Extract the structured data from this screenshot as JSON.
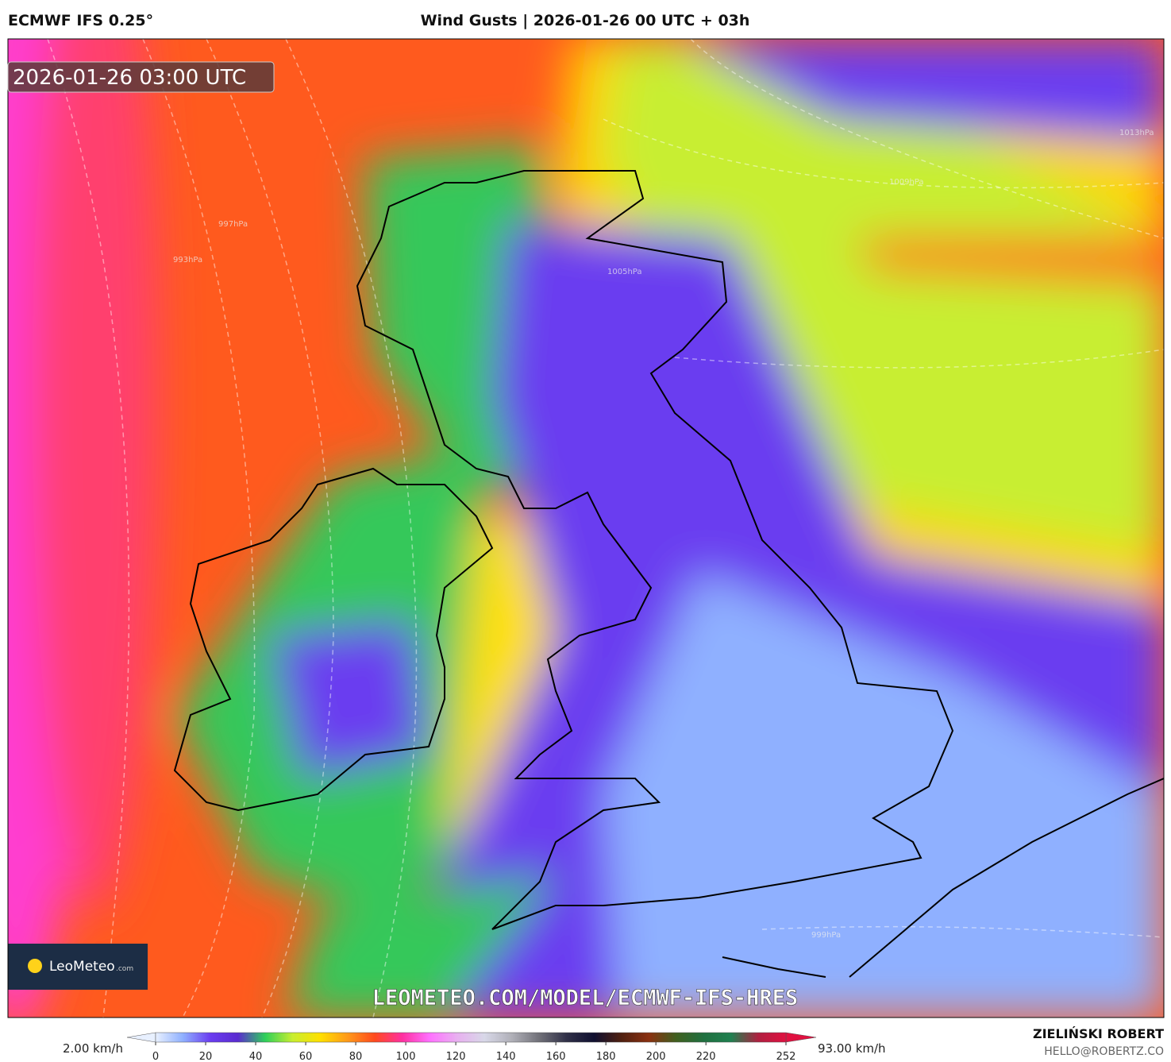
{
  "header": {
    "model": "ECMWF IFS 0.25°",
    "title": "Wind Gusts | 2026-01-26 00 UTC + 03h"
  },
  "map": {
    "timestamp": "2026-01-26 03:00 UTC",
    "logo_name": "LeoMeteo",
    "logo_suffix": ".com",
    "watermark": "LEOMETEO.COM/MODEL/ECMWF-IFS-HRES",
    "isobar_labels": [
      "1013hPa",
      "1009hPa",
      "1005hPa",
      "999hPa",
      "997hPa",
      "993hPa"
    ]
  },
  "colorbar": {
    "min_label": "2.00 km/h",
    "max_label": "93.00 km/h",
    "ticks": [
      0,
      20,
      40,
      60,
      80,
      100,
      120,
      140,
      160,
      180,
      200,
      220,
      252
    ],
    "colors": [
      "#e8f0ff",
      "#8fb0ff",
      "#6a3cf0",
      "#5a2bd0",
      "#2ed05a",
      "#c8ee30",
      "#ffe000",
      "#ff9a1a",
      "#ff4a1e",
      "#ff30a0",
      "#ff70ff",
      "#e8b0f0",
      "#d8d8e8",
      "#b0b0b8",
      "#707078",
      "#303048",
      "#101030",
      "#502010",
      "#8a3010",
      "#406020",
      "#207040",
      "#208050",
      "#b02040",
      "#e01040"
    ]
  },
  "credits": {
    "author": "ZIELIŃSKI ROBERT",
    "email": "HELLO@ROBERTZ.CO"
  }
}
